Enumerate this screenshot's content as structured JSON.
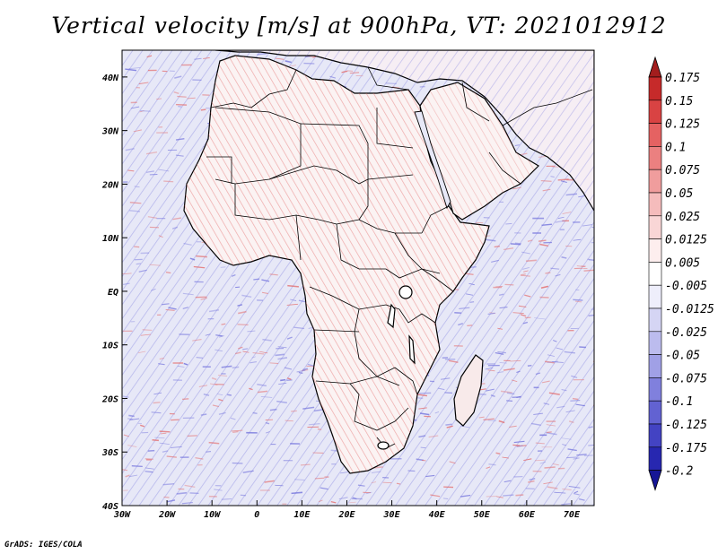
{
  "title": "Vertical velocity [m/s] at 900hPa, VT: 2021012912",
  "credit": "GrADS: IGES/COLA",
  "axes": {
    "lon_labels": [
      "30W",
      "20W",
      "10W",
      "0",
      "10E",
      "20E",
      "30E",
      "40E",
      "50E",
      "60E",
      "70E"
    ],
    "lat_labels": [
      "40N",
      "30N",
      "20N",
      "10N",
      "EQ",
      "10S",
      "20S",
      "30S",
      "40S"
    ],
    "lon_range": [
      -30,
      75
    ],
    "lat_range": [
      -40,
      45
    ]
  },
  "colorbar": {
    "labels": [
      "0.175",
      "0.15",
      "0.125",
      "0.1",
      "0.075",
      "0.05",
      "0.025",
      "0.0125",
      "0.005",
      "-0.005",
      "-0.0125",
      "-0.025",
      "-0.05",
      "-0.075",
      "-0.1",
      "-0.125",
      "-0.175",
      "-0.2"
    ],
    "colors": [
      "#a31d1d",
      "#c62a2a",
      "#d94343",
      "#e56262",
      "#eb8080",
      "#f09d9d",
      "#f5bcbc",
      "#f9d6d6",
      "#fdeeee",
      "#ffffff",
      "#eeeefb",
      "#d5d5f4",
      "#bcbcee",
      "#a0a0e6",
      "#8080dd",
      "#6262d2",
      "#4343c3",
      "#2727b0",
      "#161696"
    ]
  },
  "field_colors": {
    "ocean_background": "#e7e8f7",
    "land_background": "#fbf5f5",
    "upward": "#e46a6a",
    "downward": "#7070dc",
    "coastline": "#000000"
  }
}
